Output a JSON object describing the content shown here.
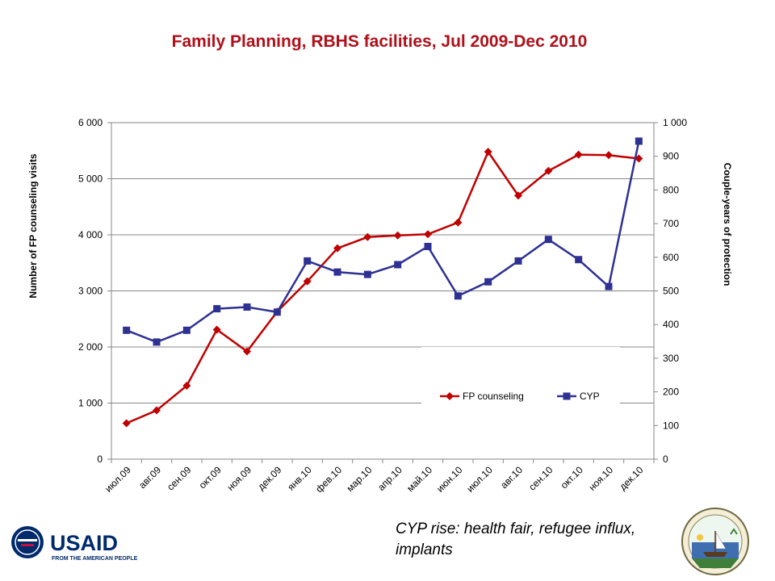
{
  "chart_data": {
    "type": "line",
    "title": "Family Planning, RBHS facilities, Jul 2009-Dec 2010",
    "categories": [
      "июл.09",
      "авг.09",
      "сен.09",
      "окт.09",
      "ноя.09",
      "дек.09",
      "янв.10",
      "фев.10",
      "мар.10",
      "апр.10",
      "май.10",
      "июн.10",
      "июл.10",
      "авг.10",
      "сен.10",
      "окт.10",
      "ноя.10",
      "дек.10"
    ],
    "series": [
      {
        "name": "FP counseling",
        "axis": "left",
        "color": "#c00000",
        "marker": "diamond",
        "values": [
          640,
          870,
          1310,
          2310,
          1920,
          2630,
          3170,
          3760,
          3960,
          3990,
          4010,
          4220,
          5480,
          4700,
          5140,
          5430,
          5420,
          5360
        ]
      },
      {
        "name": "CYP",
        "axis": "right",
        "color": "#2e3192",
        "marker": "square",
        "values": [
          383,
          348,
          383,
          447,
          452,
          437,
          589,
          556,
          549,
          578,
          632,
          485,
          527,
          589,
          653,
          593,
          513,
          945
        ]
      }
    ],
    "ylabel": "Number of FP counseling visits",
    "ylim": [
      0,
      6000
    ],
    "yticks": [
      "0",
      "1 000",
      "2 000",
      "3 000",
      "4 000",
      "5 000",
      "6 000"
    ],
    "y2label": "Couple-years of protection",
    "y2lim": [
      0,
      1000
    ],
    "y2ticks": [
      "0",
      "100",
      "200",
      "300",
      "400",
      "500",
      "600",
      "700",
      "800",
      "900",
      "1 000"
    ],
    "grid": true,
    "legend_position": "bottom-right-inside"
  },
  "caption": "CYP rise: health fair, refugee influx, implants",
  "logo": {
    "text": "USAID",
    "tagline": "FROM THE AMERICAN PEOPLE"
  },
  "seal": {
    "name": "seal-emblem"
  }
}
